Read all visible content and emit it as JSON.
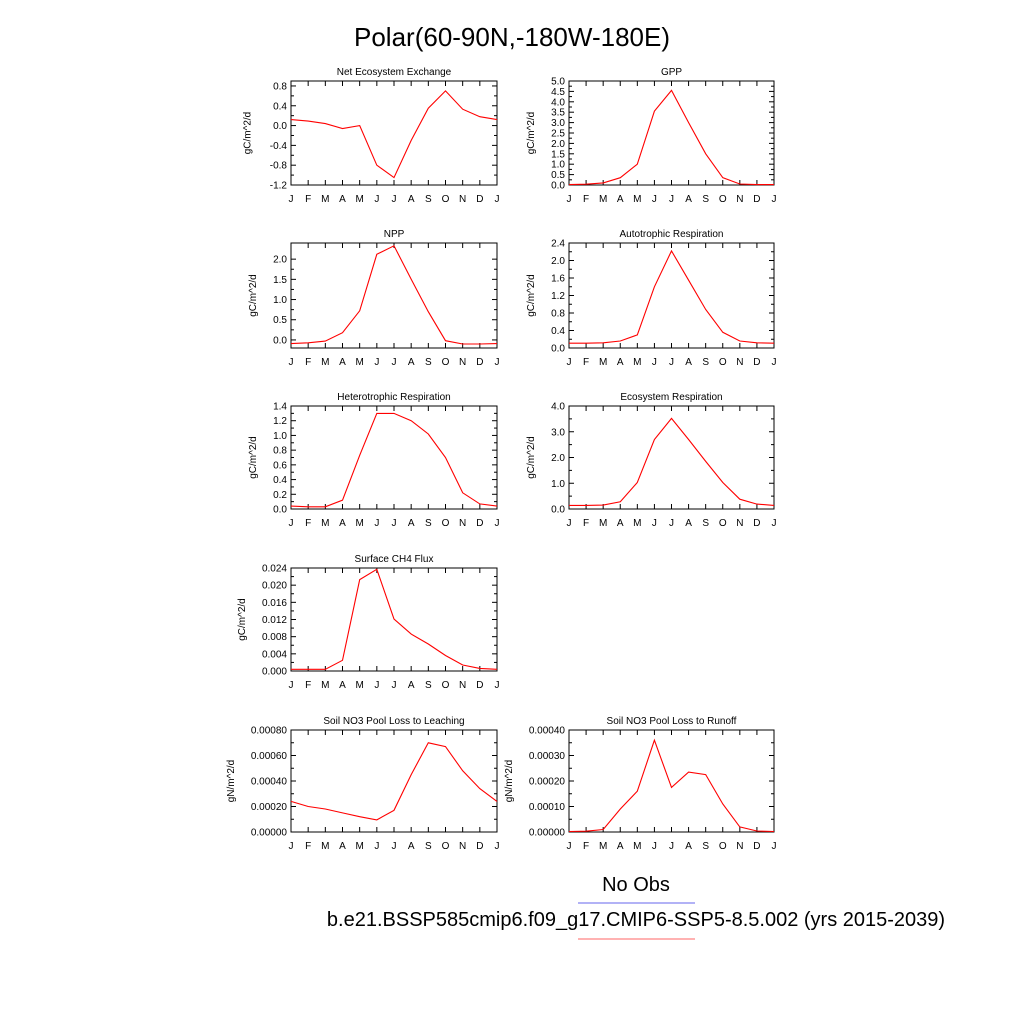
{
  "figure": {
    "title": "Polar(60-90N,-180W-180E)",
    "legend": {
      "obs_label": "No Obs",
      "model_label": "b.e21.BSSP585cmip6.f09_g17.CMIP6-SSP5-8.5.002 (yrs 2015-2039)",
      "obs_color": "#6666ee",
      "model_color": "#ff6666"
    },
    "line_color": "#ff0000"
  },
  "chart_data": [
    {
      "type": "line",
      "title": "Net Ecosystem Exchange",
      "ylabel": "gC/m^2/d",
      "categories": [
        "J",
        "F",
        "M",
        "A",
        "M",
        "J",
        "J",
        "A",
        "S",
        "O",
        "N",
        "D",
        "J"
      ],
      "ylim": [
        -1.2,
        0.9
      ],
      "yticks": [
        -1.2,
        -0.8,
        -0.4,
        0.0,
        0.4,
        0.8
      ],
      "ytick_labels": [
        "-1.2",
        "-0.8",
        "-0.4",
        "0.0",
        "0.4",
        "0.8"
      ],
      "values": [
        0.12,
        0.09,
        0.04,
        -0.06,
        0.0,
        -0.8,
        -1.05,
        -0.3,
        0.35,
        0.7,
        0.33,
        0.18,
        0.12
      ]
    },
    {
      "type": "line",
      "title": "GPP",
      "ylabel": "gC/m^2/d",
      "categories": [
        "J",
        "F",
        "M",
        "A",
        "M",
        "J",
        "J",
        "A",
        "S",
        "O",
        "N",
        "D",
        "J"
      ],
      "ylim": [
        0.0,
        5.0
      ],
      "yticks": [
        0,
        0.5,
        1,
        1.5,
        2,
        2.5,
        3,
        3.5,
        4,
        4.5,
        5
      ],
      "ytick_labels": [
        "0.0",
        "0.5",
        "1.0",
        "1.5",
        "2.0",
        "2.5",
        "3.0",
        "3.5",
        "4.0",
        "4.5",
        "5.0"
      ],
      "values": [
        0.02,
        0.04,
        0.1,
        0.35,
        1.0,
        3.55,
        4.55,
        3.0,
        1.5,
        0.35,
        0.05,
        0.02,
        0.02
      ]
    },
    {
      "type": "line",
      "title": "NPP",
      "ylabel": "gC/m^2/d",
      "categories": [
        "J",
        "F",
        "M",
        "A",
        "M",
        "J",
        "J",
        "A",
        "S",
        "O",
        "N",
        "D",
        "J"
      ],
      "ylim": [
        -0.2,
        2.4
      ],
      "yticks": [
        0.0,
        0.5,
        1.0,
        1.5,
        2.0
      ],
      "ytick_labels": [
        "0.0",
        "0.5",
        "1.0",
        "1.5",
        "2.0"
      ],
      "values": [
        -0.09,
        -0.07,
        -0.03,
        0.18,
        0.72,
        2.12,
        2.33,
        1.5,
        0.7,
        -0.02,
        -0.1,
        -0.1,
        -0.09
      ]
    },
    {
      "type": "line",
      "title": "Autotrophic Respiration",
      "ylabel": "gC/m^2/d",
      "categories": [
        "J",
        "F",
        "M",
        "A",
        "M",
        "J",
        "J",
        "A",
        "S",
        "O",
        "N",
        "D",
        "J"
      ],
      "ylim": [
        0.0,
        2.4
      ],
      "yticks": [
        0,
        0.4,
        0.8,
        1.2,
        1.6,
        2.0,
        2.4
      ],
      "ytick_labels": [
        "0.0",
        "0.4",
        "0.8",
        "1.2",
        "1.6",
        "2.0",
        "2.4"
      ],
      "values": [
        0.11,
        0.11,
        0.12,
        0.16,
        0.3,
        1.4,
        2.22,
        1.55,
        0.88,
        0.36,
        0.16,
        0.12,
        0.11
      ]
    },
    {
      "type": "line",
      "title": "Heterotrophic Respiration",
      "ylabel": "gC/m^2/d",
      "categories": [
        "J",
        "F",
        "M",
        "A",
        "M",
        "J",
        "J",
        "A",
        "S",
        "O",
        "N",
        "D",
        "J"
      ],
      "ylim": [
        0.0,
        1.4
      ],
      "yticks": [
        0,
        0.2,
        0.4,
        0.6,
        0.8,
        1.0,
        1.2,
        1.4
      ],
      "ytick_labels": [
        "0.0",
        "0.2",
        "0.4",
        "0.6",
        "0.8",
        "1.0",
        "1.2",
        "1.4"
      ],
      "values": [
        0.04,
        0.03,
        0.03,
        0.12,
        0.73,
        1.3,
        1.3,
        1.2,
        1.02,
        0.7,
        0.22,
        0.07,
        0.04
      ]
    },
    {
      "type": "line",
      "title": "Ecosystem Respiration",
      "ylabel": "gC/m^2/d",
      "categories": [
        "J",
        "F",
        "M",
        "A",
        "M",
        "J",
        "J",
        "A",
        "S",
        "O",
        "N",
        "D",
        "J"
      ],
      "ylim": [
        0.0,
        4.0
      ],
      "yticks": [
        0,
        1,
        2,
        3,
        4
      ],
      "ytick_labels": [
        "0.0",
        "1.0",
        "2.0",
        "3.0",
        "4.0"
      ],
      "values": [
        0.14,
        0.14,
        0.15,
        0.28,
        1.03,
        2.7,
        3.52,
        2.7,
        1.85,
        1.03,
        0.38,
        0.19,
        0.14
      ]
    },
    {
      "type": "line",
      "title": "Surface CH4 Flux",
      "ylabel": "gC/m^2/d",
      "categories": [
        "J",
        "F",
        "M",
        "A",
        "M",
        "J",
        "J",
        "A",
        "S",
        "O",
        "N",
        "D",
        "J"
      ],
      "ylim": [
        0.0,
        0.024
      ],
      "yticks": [
        0,
        0.004,
        0.008,
        0.012,
        0.016,
        0.02,
        0.024
      ],
      "ytick_labels": [
        "0.000",
        "0.004",
        "0.008",
        "0.012",
        "0.016",
        "0.020",
        "0.024"
      ],
      "values": [
        0.0004,
        0.0004,
        0.0004,
        0.0025,
        0.0213,
        0.0237,
        0.0121,
        0.0086,
        0.0063,
        0.0036,
        0.0014,
        0.0006,
        0.0004
      ]
    },
    {
      "type": "line",
      "title": "Soil NO3 Pool Loss to Leaching",
      "ylabel": "gN/m^2/d",
      "categories": [
        "J",
        "F",
        "M",
        "A",
        "M",
        "J",
        "J",
        "A",
        "S",
        "O",
        "N",
        "D",
        "J"
      ],
      "ylim": [
        0.0,
        0.0008
      ],
      "yticks": [
        0,
        0.0002,
        0.0004,
        0.0006,
        0.0008
      ],
      "ytick_labels": [
        "0.00000",
        "0.00020",
        "0.00040",
        "0.00060",
        "0.00080"
      ],
      "values": [
        0.00024,
        0.0002,
        0.00018,
        0.00015,
        0.00012,
        9.5e-05,
        0.00017,
        0.00045,
        0.0007,
        0.00067,
        0.00048,
        0.00034,
        0.00024
      ]
    },
    {
      "type": "line",
      "title": "Soil NO3 Pool Loss to Runoff",
      "ylabel": "gN/m^2/d",
      "categories": [
        "J",
        "F",
        "M",
        "A",
        "M",
        "J",
        "J",
        "A",
        "S",
        "O",
        "N",
        "D",
        "J"
      ],
      "ylim": [
        0.0,
        0.0004
      ],
      "yticks": [
        0,
        0.0001,
        0.0002,
        0.0003,
        0.0004
      ],
      "ytick_labels": [
        "0.00000",
        "0.00010",
        "0.00020",
        "0.00030",
        "0.00040"
      ],
      "values": [
        2e-06,
        3e-06,
        1e-05,
        9e-05,
        0.00016,
        0.00036,
        0.000175,
        0.000235,
        0.000225,
        0.00011,
        2e-05,
        4e-06,
        2e-06
      ]
    }
  ]
}
